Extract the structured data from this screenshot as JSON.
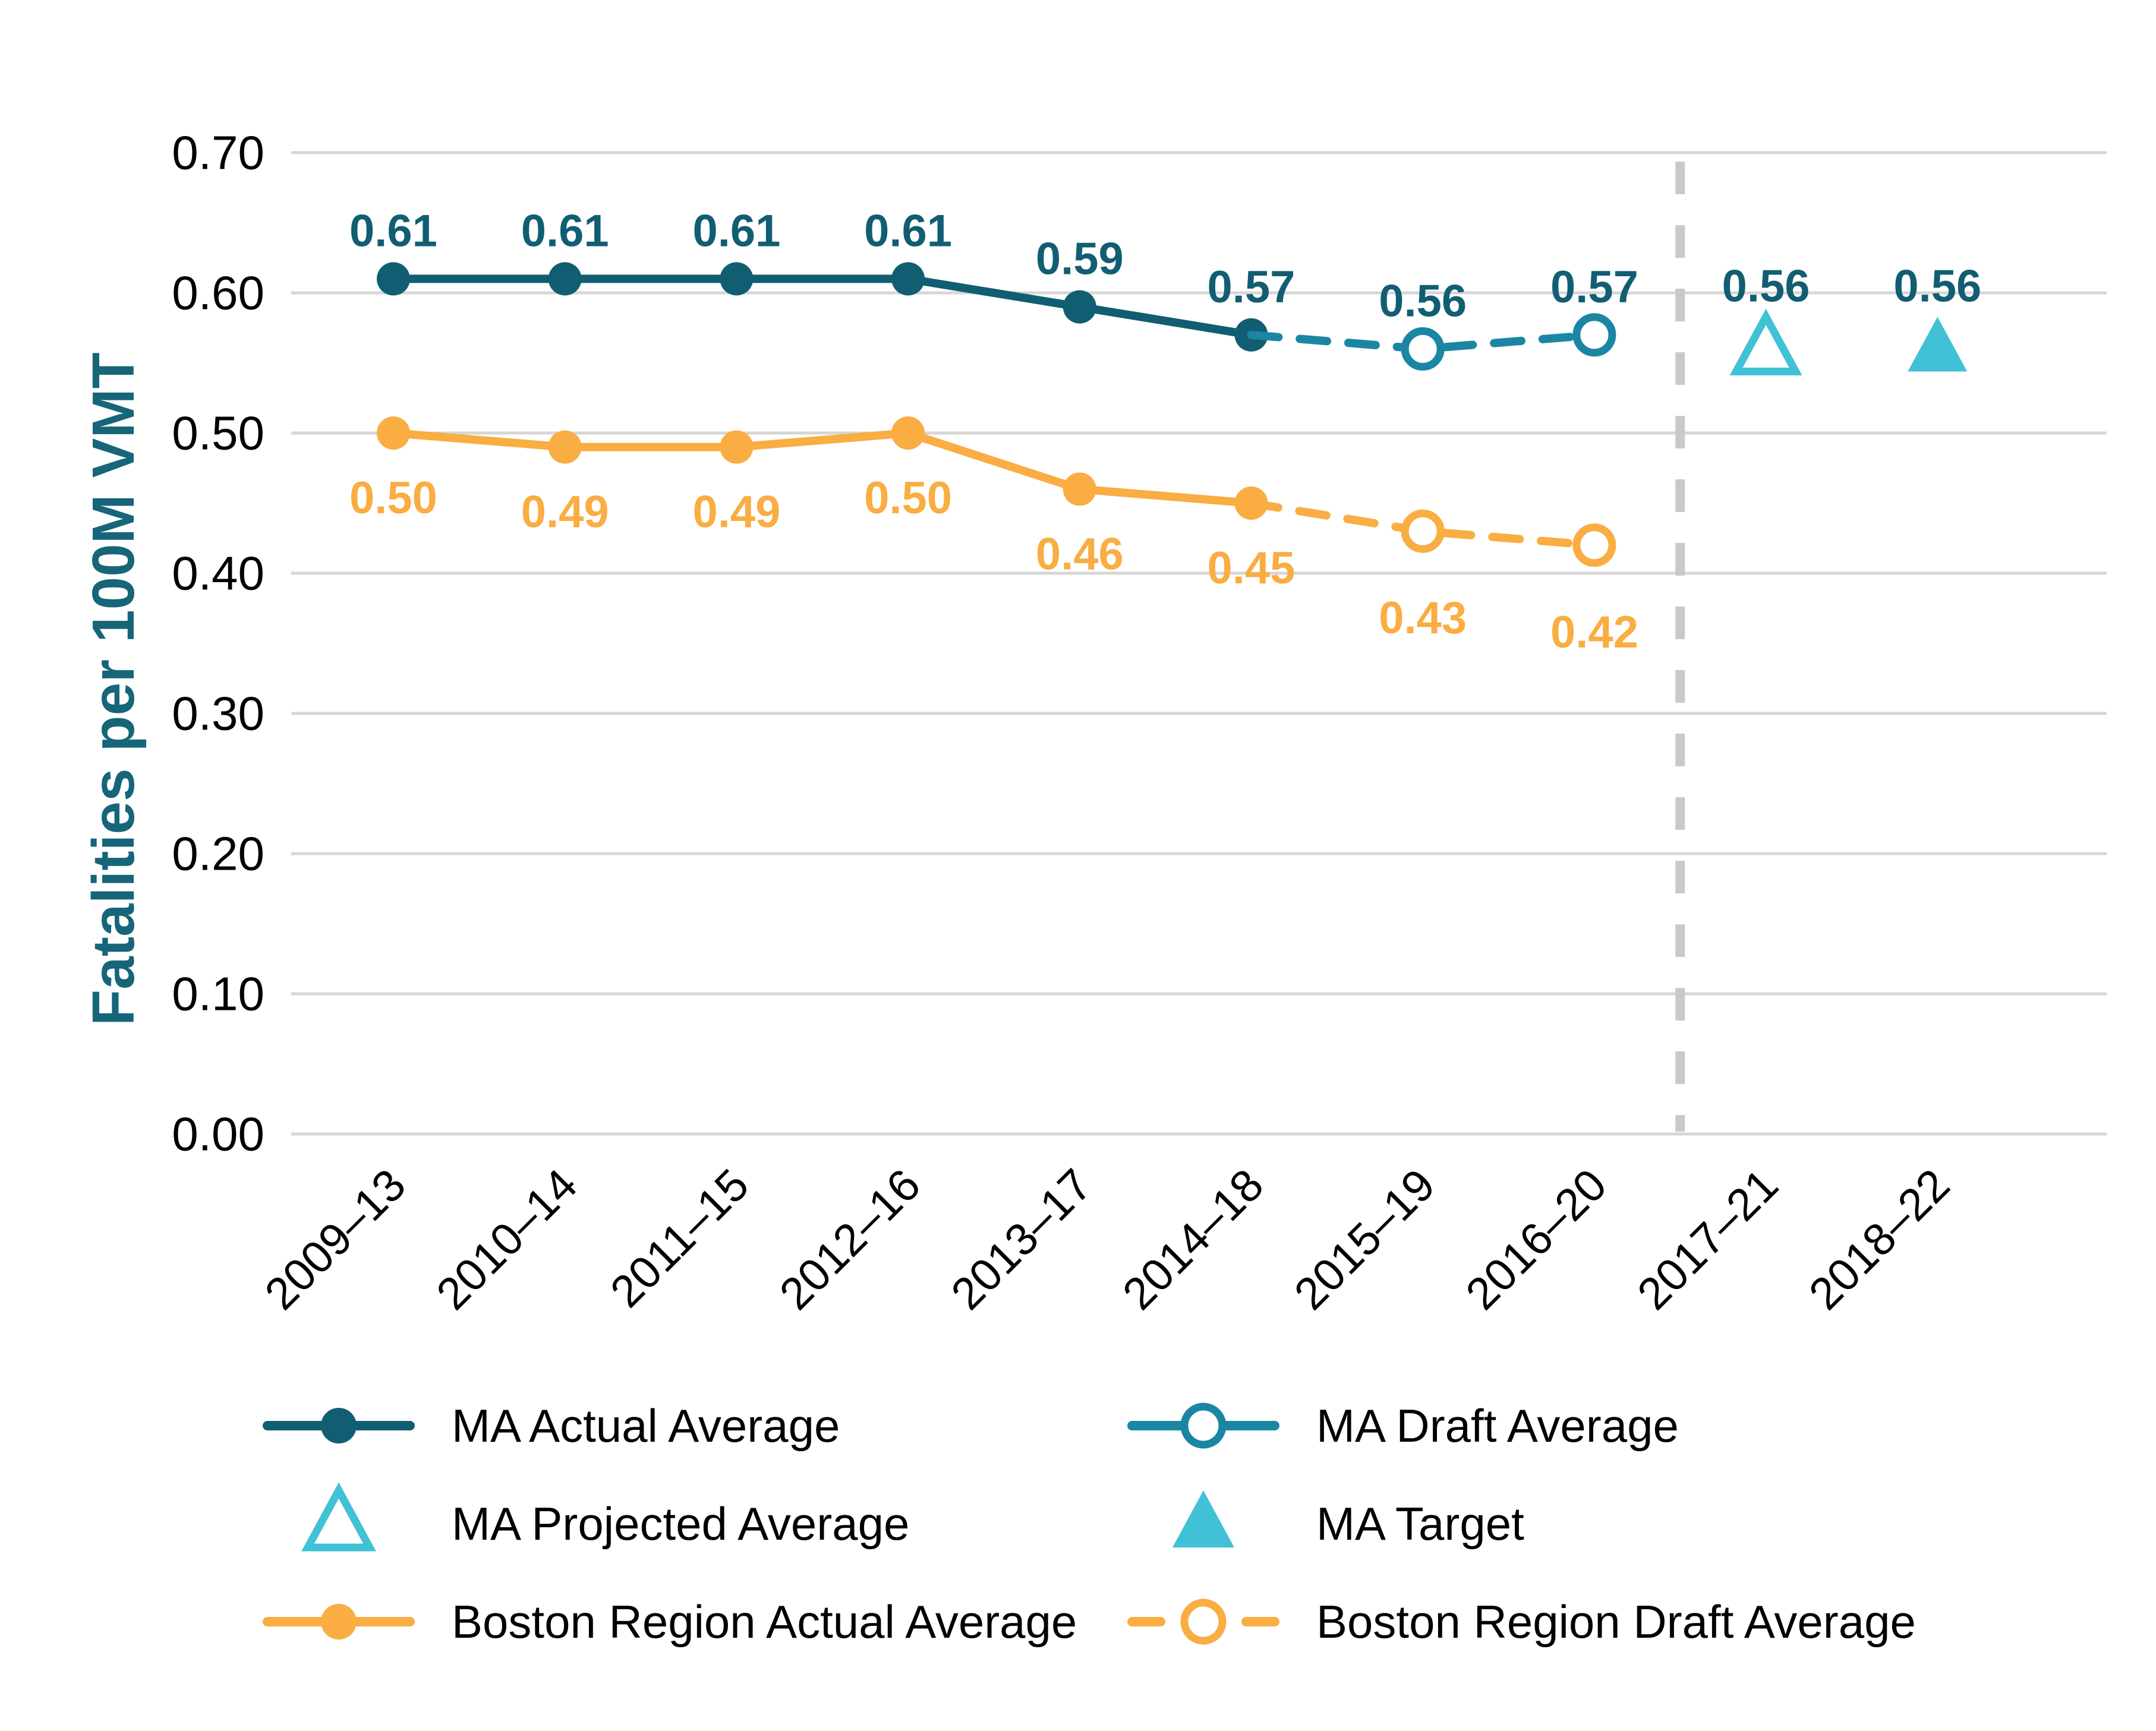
{
  "page": {
    "background": "#ffffff"
  },
  "colors": {
    "tealDark": "#115e72",
    "tealDraft": "#1b86a3",
    "cyan": "#41c1d6",
    "orange": "#f9ad42",
    "axisTitleTeal": "#176579",
    "grid": "#d6d6d6",
    "divider": "#c9c9c9",
    "tick": "#000000",
    "legendText": "#000000"
  },
  "legend": {
    "position": "bottom",
    "items": [
      {
        "label": "MA Actual Average",
        "marker": "teal-line-filled-circle"
      },
      {
        "label": "MA Projected Average",
        "marker": "cyan-open-triangle"
      },
      {
        "label": "Boston Region Actual Average",
        "marker": "orange-line-filled-circle"
      },
      {
        "label": "MA Draft Average",
        "marker": "teal-line-open-circle"
      },
      {
        "label": "MA Target",
        "marker": "cyan-filled-triangle"
      },
      {
        "label": "Boston Region Draft Average",
        "marker": "orange-dashed-open-circle"
      }
    ]
  },
  "chart_data": {
    "type": "line",
    "title": "",
    "xlabel": "",
    "ylabel": "Fatalities per 100M VMT",
    "ylim": [
      0.0,
      0.7
    ],
    "yticks": [
      "0.70",
      "0.60",
      "0.50",
      "0.40",
      "0.30",
      "0.20",
      "0.10",
      "0.00"
    ],
    "grid": "horizontal",
    "legend_position": "bottom",
    "divider_between": [
      "2016–20",
      "2017–21"
    ],
    "categories": [
      "2009–13",
      "2010–14",
      "2011–15",
      "2012–16",
      "2013–17",
      "2014–18",
      "2015–19",
      "2016–20",
      "2017–21",
      "2018–22"
    ],
    "series": [
      {
        "name": "MA Actual Average",
        "color": "tealDark",
        "label_color": "tealDark",
        "marker": "filled-circle",
        "dashed": false,
        "label_side": "above",
        "points": [
          {
            "i": 0,
            "v": 0.61,
            "label": "0.61"
          },
          {
            "i": 1,
            "v": 0.61,
            "label": "0.61"
          },
          {
            "i": 2,
            "v": 0.61,
            "label": "0.61"
          },
          {
            "i": 3,
            "v": 0.61,
            "label": "0.61"
          },
          {
            "i": 4,
            "v": 0.59,
            "label": "0.59"
          },
          {
            "i": 5,
            "v": 0.57,
            "label": "0.57"
          }
        ]
      },
      {
        "name": "MA Draft Average",
        "color": "tealDraft",
        "label_color": "tealDark",
        "marker": "open-circle",
        "dashed": true,
        "label_side": "above",
        "points": [
          {
            "i": 5,
            "v": 0.57,
            "marker_skip": true
          },
          {
            "i": 6,
            "v": 0.56,
            "label": "0.56"
          },
          {
            "i": 7,
            "v": 0.57,
            "label": "0.57"
          }
        ]
      },
      {
        "name": "MA Projected Average",
        "color": "cyan",
        "label_color": "tealDark",
        "marker": "triangle-open",
        "dashed": false,
        "label_side": "above",
        "points": [
          {
            "i": 8,
            "v": 0.56,
            "label": "0.56"
          }
        ]
      },
      {
        "name": "MA Target",
        "color": "cyan",
        "label_color": "tealDark",
        "marker": "triangle-filled",
        "dashed": false,
        "label_side": "above",
        "points": [
          {
            "i": 9,
            "v": 0.56,
            "label": "0.56"
          }
        ]
      },
      {
        "name": "Boston Region Actual Average",
        "color": "orange",
        "label_color": "orange",
        "marker": "filled-circle",
        "dashed": false,
        "label_side": "below",
        "points": [
          {
            "i": 0,
            "v": 0.5,
            "label": "0.50"
          },
          {
            "i": 1,
            "v": 0.49,
            "label": "0.49"
          },
          {
            "i": 2,
            "v": 0.49,
            "label": "0.49"
          },
          {
            "i": 3,
            "v": 0.5,
            "label": "0.50"
          },
          {
            "i": 4,
            "v": 0.46,
            "label": "0.46"
          },
          {
            "i": 5,
            "v": 0.45,
            "label": "0.45"
          }
        ]
      },
      {
        "name": "Boston Region Draft Average",
        "color": "orange",
        "label_color": "orange",
        "marker": "open-circle",
        "dashed": true,
        "label_side": "below-far",
        "points": [
          {
            "i": 5,
            "v": 0.45,
            "marker_skip": true
          },
          {
            "i": 6,
            "v": 0.43,
            "label": "0.43"
          },
          {
            "i": 7,
            "v": 0.42,
            "label": "0.42"
          }
        ]
      }
    ]
  }
}
